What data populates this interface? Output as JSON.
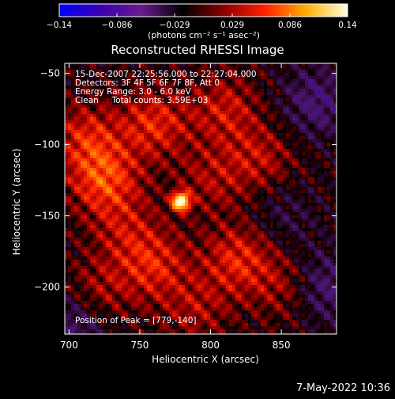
{
  "chart_data": {
    "type": "heatmap",
    "title": "Reconstructed RHESSI Image",
    "colorbar": {
      "ticks": [
        "−0.14",
        "−0.086",
        "−0.029",
        "0.029",
        "0.086",
        "0.14"
      ],
      "range": [
        -0.14,
        0.14
      ],
      "unit_label": "(photons cm⁻² s⁻¹ asec⁻²)",
      "colors": [
        "#0000ff",
        "#3a00b0",
        "#6a1a8a",
        "#000000",
        "#8b0000",
        "#ff2000",
        "#ffb000",
        "#ffffe0"
      ]
    },
    "xlabel": "Heliocentric X (arcsec)",
    "ylabel": "Heliocentric Y (arcsec)",
    "xlim": [
      697,
      889
    ],
    "ylim": [
      -233,
      -43
    ],
    "x_ticks": [
      700,
      750,
      800,
      850
    ],
    "y_ticks": [
      -50,
      -100,
      -150,
      -200
    ],
    "x_tick_labels": [
      "700",
      "750",
      "800",
      "850"
    ],
    "y_tick_labels": [
      "−50",
      "−100",
      "−150",
      "−200"
    ],
    "annotations": [
      "15-Dec-2007 22:25:56.000 to 22:27:04.000",
      "Detectors: 3F 4F 5F 6F 7F 8F, Att 0",
      "Energy Range: 3.0 - 6.0 keV",
      "Clean     Total counts: 3.59E+03"
    ],
    "peak_label": "Position of Peak = [779,-140]",
    "peak": [
      779,
      -140
    ],
    "peak_value": 0.14,
    "background_blobs": [
      {
        "x": 725,
        "y": -125,
        "v": 0.06
      },
      {
        "x": 712,
        "y": -95,
        "v": 0.045
      },
      {
        "x": 760,
        "y": -85,
        "v": 0.05
      },
      {
        "x": 810,
        "y": -75,
        "v": 0.04
      },
      {
        "x": 835,
        "y": -110,
        "v": 0.035
      },
      {
        "x": 800,
        "y": -125,
        "v": 0.03
      },
      {
        "x": 760,
        "y": -185,
        "v": 0.045
      },
      {
        "x": 820,
        "y": -180,
        "v": 0.05
      },
      {
        "x": 855,
        "y": -200,
        "v": 0.035
      },
      {
        "x": 720,
        "y": -205,
        "v": 0.035
      },
      {
        "x": 790,
        "y": -215,
        "v": 0.03
      },
      {
        "x": 740,
        "y": -160,
        "v": 0.03
      }
    ],
    "negative_blobs": [
      {
        "x": 875,
        "y": -70,
        "v": -0.04
      },
      {
        "x": 878,
        "y": -200,
        "v": -0.045
      },
      {
        "x": 705,
        "y": -225,
        "v": -0.04
      },
      {
        "x": 850,
        "y": -150,
        "v": -0.02
      }
    ]
  },
  "footer": {
    "date": "7-May-2022 10:36"
  }
}
